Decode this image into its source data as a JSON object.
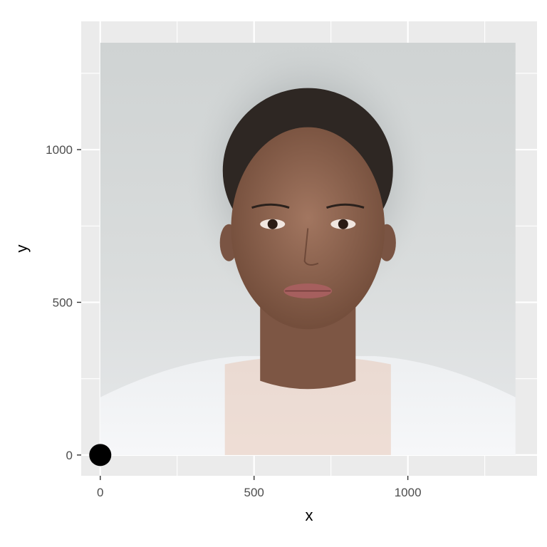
{
  "chart_data": {
    "type": "scatter",
    "xlabel": "x",
    "ylabel": "y",
    "xlim": [
      -62,
      1420
    ],
    "ylim": [
      -68,
      1420
    ],
    "x_ticks": [
      0,
      500,
      1000
    ],
    "x_tick_labels": [
      "0",
      "500",
      "1000"
    ],
    "y_ticks": [
      0,
      500,
      1000
    ],
    "y_tick_labels": [
      "0",
      "500",
      "1000"
    ],
    "grid": true,
    "panel_background": "#ebebeb",
    "grid_color": "#ffffff",
    "background_image": {
      "content": "composite average face photograph",
      "x_range": [
        0,
        1350
      ],
      "y_range": [
        0,
        1350
      ]
    },
    "points": [
      {
        "x": 0,
        "y": 0,
        "color": "#000000"
      }
    ]
  }
}
